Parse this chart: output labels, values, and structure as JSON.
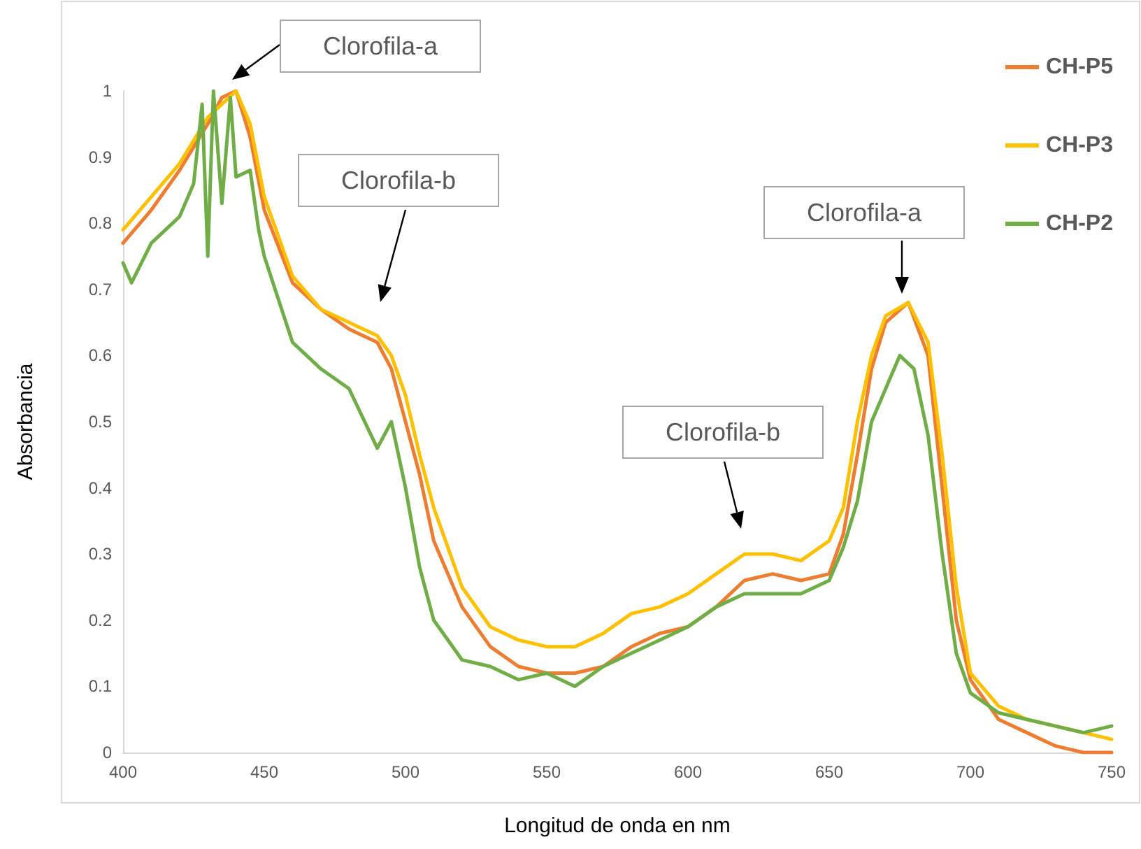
{
  "chart_data": {
    "type": "line",
    "xlabel": "Longitud de onda en nm",
    "ylabel": "Absorbancia",
    "xlim": [
      400,
      750
    ],
    "xticks": [
      400,
      450,
      500,
      550,
      600,
      650,
      700,
      750
    ],
    "ylim": [
      0,
      1
    ],
    "yticks": [
      0,
      0.1,
      0.2,
      0.3,
      0.4,
      0.5,
      0.6,
      0.7,
      0.8,
      0.9,
      1
    ],
    "grid": false,
    "legend": "top right",
    "marker": "none",
    "line_style": "solid",
    "annotations": [
      "Clorofila-a",
      "Clorofila-b",
      "Clorofila-a",
      "Clorofila-b"
    ],
    "series": [
      {
        "name": "CH-P5",
        "color": "#ed7d31",
        "x": [
          400,
          410,
          420,
          430,
          435,
          440,
          445,
          450,
          460,
          470,
          480,
          490,
          495,
          500,
          505,
          510,
          520,
          530,
          540,
          550,
          560,
          570,
          580,
          590,
          600,
          610,
          620,
          630,
          640,
          650,
          655,
          660,
          665,
          670,
          678,
          685,
          690,
          695,
          700,
          710,
          720,
          730,
          740,
          750
        ],
        "values": [
          0.77,
          0.82,
          0.88,
          0.95,
          0.99,
          1.0,
          0.93,
          0.82,
          0.71,
          0.67,
          0.64,
          0.62,
          0.58,
          0.5,
          0.42,
          0.32,
          0.22,
          0.16,
          0.13,
          0.12,
          0.12,
          0.13,
          0.16,
          0.18,
          0.19,
          0.22,
          0.26,
          0.27,
          0.26,
          0.27,
          0.33,
          0.45,
          0.58,
          0.65,
          0.68,
          0.6,
          0.4,
          0.2,
          0.11,
          0.05,
          0.03,
          0.01,
          0.0,
          0.0
        ]
      },
      {
        "name": "CH-P3",
        "color": "#ffc000",
        "x": [
          400,
          410,
          420,
          430,
          440,
          445,
          450,
          460,
          470,
          480,
          490,
          495,
          500,
          505,
          510,
          520,
          530,
          540,
          550,
          560,
          570,
          580,
          590,
          600,
          610,
          620,
          630,
          640,
          650,
          655,
          660,
          665,
          670,
          678,
          685,
          690,
          695,
          700,
          710,
          720,
          730,
          740,
          750
        ],
        "values": [
          0.79,
          0.84,
          0.89,
          0.96,
          1.0,
          0.95,
          0.84,
          0.72,
          0.67,
          0.65,
          0.63,
          0.6,
          0.54,
          0.45,
          0.37,
          0.25,
          0.19,
          0.17,
          0.16,
          0.16,
          0.18,
          0.21,
          0.22,
          0.24,
          0.27,
          0.3,
          0.3,
          0.29,
          0.32,
          0.37,
          0.5,
          0.6,
          0.66,
          0.68,
          0.62,
          0.45,
          0.25,
          0.12,
          0.07,
          0.05,
          0.04,
          0.03,
          0.02
        ]
      },
      {
        "name": "CH-P2",
        "color": "#70ad47",
        "x": [
          400,
          403,
          410,
          420,
          425,
          428,
          430,
          432,
          435,
          438,
          440,
          445,
          448,
          450,
          460,
          470,
          480,
          490,
          495,
          500,
          505,
          510,
          520,
          530,
          540,
          550,
          560,
          570,
          580,
          590,
          600,
          610,
          620,
          630,
          640,
          650,
          655,
          660,
          665,
          670,
          675,
          680,
          685,
          690,
          695,
          700,
          710,
          720,
          730,
          740,
          750
        ],
        "values": [
          0.74,
          0.71,
          0.77,
          0.81,
          0.86,
          0.98,
          0.75,
          1.0,
          0.83,
          0.99,
          0.87,
          0.88,
          0.79,
          0.75,
          0.62,
          0.58,
          0.55,
          0.46,
          0.5,
          0.4,
          0.28,
          0.2,
          0.14,
          0.13,
          0.11,
          0.12,
          0.1,
          0.13,
          0.15,
          0.17,
          0.19,
          0.22,
          0.24,
          0.24,
          0.24,
          0.26,
          0.31,
          0.38,
          0.5,
          0.55,
          0.6,
          0.58,
          0.48,
          0.3,
          0.15,
          0.09,
          0.06,
          0.05,
          0.04,
          0.03,
          0.04
        ]
      }
    ]
  }
}
